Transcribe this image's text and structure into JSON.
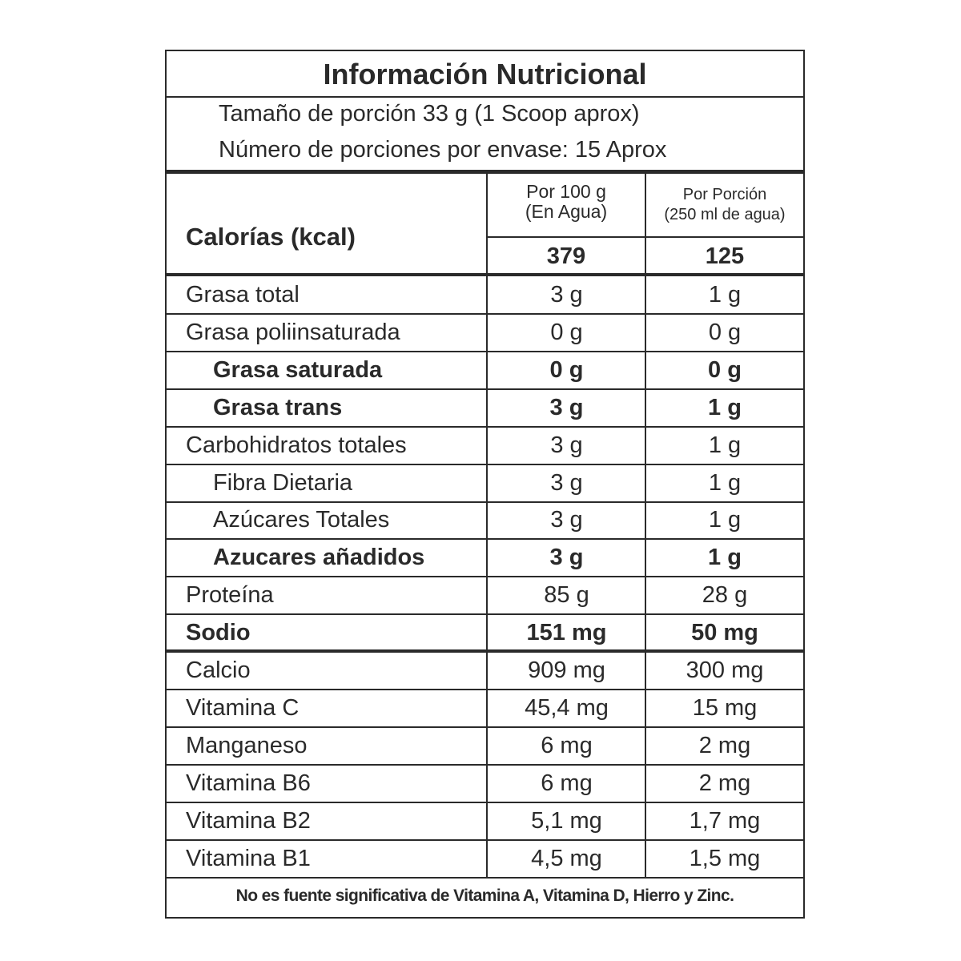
{
  "title": "Información Nutricional",
  "serving_size": "Tamaño de porción 33 g (1 Scoop aprox)",
  "servings_per_container": "Número de porciones por envase: 15 Aprox",
  "calories": {
    "label": "Calorías (kcal)",
    "col1_header_line1": "Por 100 g",
    "col1_header_line2": "(En Agua)",
    "col2_header_line1": "Por Porción",
    "col2_header_line2": "(250 ml de agua)",
    "per_100g": "379",
    "per_serving": "125"
  },
  "rows": [
    {
      "name": "Grasa total",
      "per_100g": "3 g",
      "per_serving": "1 g",
      "bold": false,
      "indent": false
    },
    {
      "name": "Grasa poliinsaturada",
      "per_100g": "0 g",
      "per_serving": "0 g",
      "bold": false,
      "indent": false
    },
    {
      "name": "Grasa saturada",
      "per_100g": "0 g",
      "per_serving": "0 g",
      "bold": true,
      "indent": true
    },
    {
      "name": "Grasa trans",
      "per_100g": "3 g",
      "per_serving": "1 g",
      "bold": true,
      "indent": true
    },
    {
      "name": "Carbohidratos totales",
      "per_100g": "3 g",
      "per_serving": "1 g",
      "bold": false,
      "indent": false
    },
    {
      "name": "Fibra Dietaria",
      "per_100g": "3 g",
      "per_serving": "1 g",
      "bold": false,
      "indent": true
    },
    {
      "name": "Azúcares Totales",
      "per_100g": "3 g",
      "per_serving": "1 g",
      "bold": false,
      "indent": true
    },
    {
      "name": "Azucares añadidos",
      "per_100g": "3 g",
      "per_serving": "1 g",
      "bold": true,
      "indent": true
    },
    {
      "name": "Proteína",
      "per_100g": "85 g",
      "per_serving": "28 g",
      "bold": false,
      "indent": false
    },
    {
      "name": "Sodio",
      "per_100g": "151 mg",
      "per_serving": "50 mg",
      "bold": true,
      "indent": false
    },
    {
      "name": "Calcio",
      "per_100g": "909 mg",
      "per_serving": "300 mg",
      "bold": false,
      "indent": false
    },
    {
      "name": "Vitamina C",
      "per_100g": "45,4 mg",
      "per_serving": "15 mg",
      "bold": false,
      "indent": false
    },
    {
      "name": "Manganeso",
      "per_100g": "6 mg",
      "per_serving": "2 mg",
      "bold": false,
      "indent": false
    },
    {
      "name": "Vitamina B6",
      "per_100g": "6 mg",
      "per_serving": "2 mg",
      "bold": false,
      "indent": false
    },
    {
      "name": "Vitamina B2",
      "per_100g": "5,1 mg",
      "per_serving": "1,7 mg",
      "bold": false,
      "indent": false
    },
    {
      "name": "Vitamina B1",
      "per_100g": "4,5 mg",
      "per_serving": "1,5 mg",
      "bold": false,
      "indent": false
    }
  ],
  "footnote": "No es fuente significativa de Vitamina A, Vitamina D, Hierro y Zinc."
}
